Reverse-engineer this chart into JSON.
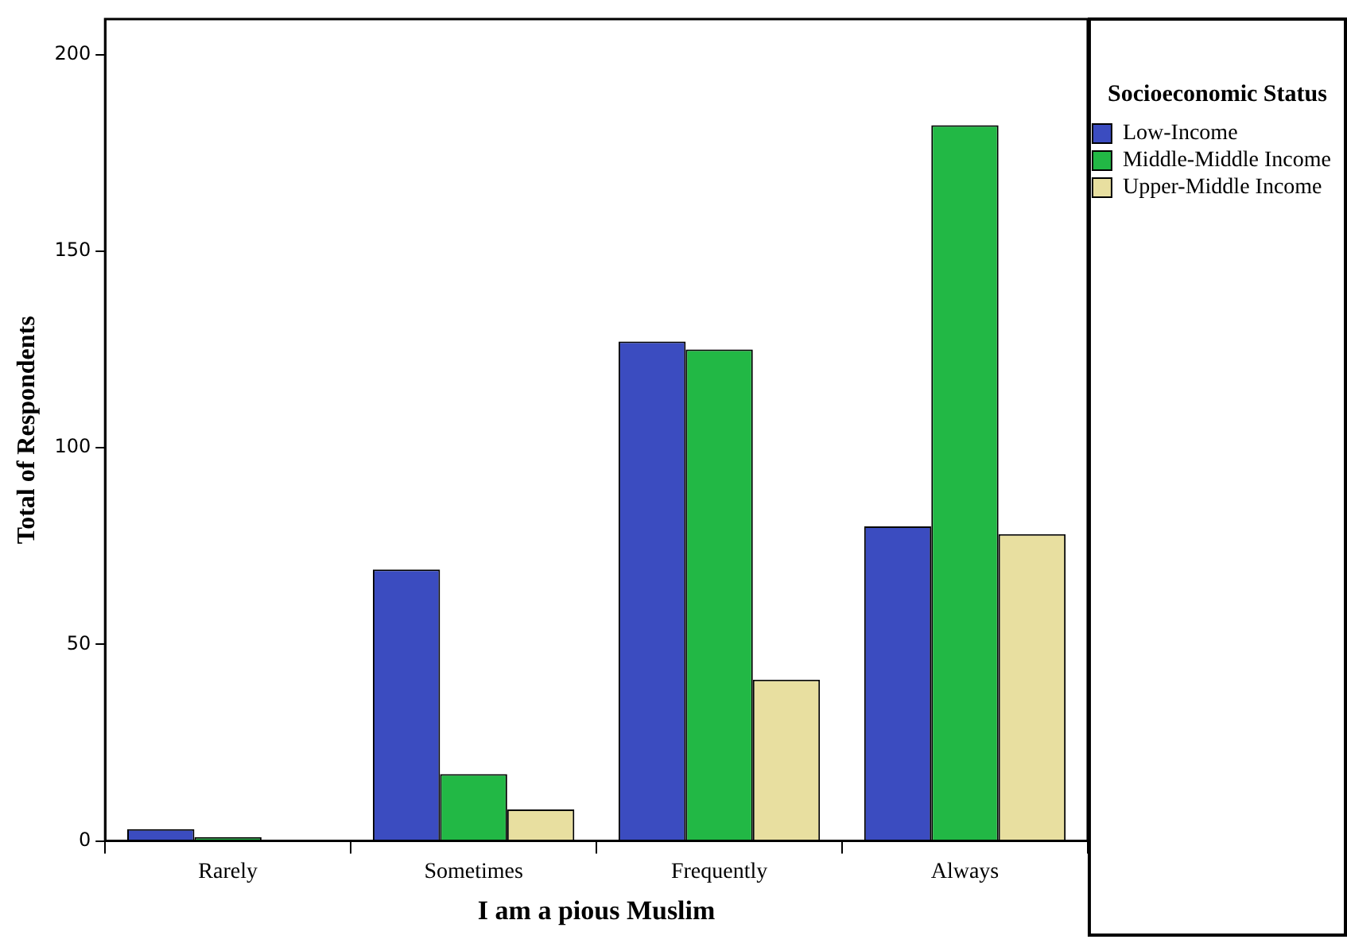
{
  "chart_data": {
    "type": "bar",
    "xlabel": "I am a pious Muslim",
    "ylabel": "Total of Respondents",
    "legend_title": "Socioeconomic Status",
    "categories": [
      "Rarely",
      "Sometimes",
      "Frequently",
      "Always"
    ],
    "series": [
      {
        "name": "Low-Income",
        "color": "#3b4cc0",
        "values": [
          3,
          69,
          127,
          80
        ]
      },
      {
        "name": "Middle-Middle Income",
        "color": "#22b845",
        "values": [
          1,
          17,
          125,
          182
        ]
      },
      {
        "name": "Upper-Middle Income",
        "color": "#e8dfa0",
        "values": [
          0,
          8,
          41,
          78
        ]
      }
    ],
    "ylim": [
      0,
      209
    ],
    "yticks": [
      0,
      50,
      100,
      150,
      200
    ],
    "grid": false,
    "legend": "top right"
  }
}
